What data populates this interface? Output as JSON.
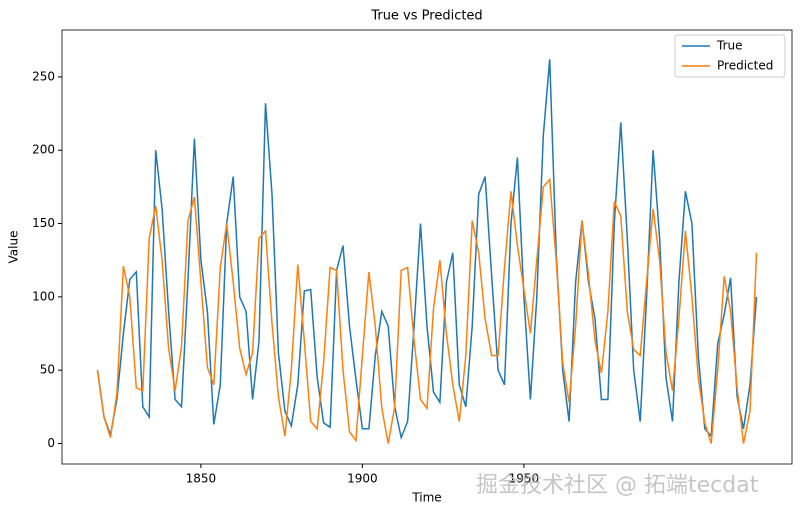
{
  "chart_data": {
    "type": "line",
    "title": "True vs Predicted",
    "xlabel": "Time",
    "ylabel": "Value",
    "x": [
      1818,
      1820,
      1822,
      1824,
      1826,
      1828,
      1830,
      1832,
      1834,
      1836,
      1838,
      1840,
      1842,
      1844,
      1846,
      1848,
      1850,
      1852,
      1854,
      1856,
      1858,
      1860,
      1862,
      1864,
      1866,
      1868,
      1870,
      1872,
      1874,
      1876,
      1878,
      1880,
      1882,
      1884,
      1886,
      1888,
      1890,
      1892,
      1894,
      1896,
      1898,
      1900,
      1902,
      1904,
      1906,
      1908,
      1910,
      1912,
      1914,
      1916,
      1918,
      1920,
      1922,
      1924,
      1926,
      1928,
      1930,
      1932,
      1934,
      1936,
      1938,
      1940,
      1942,
      1944,
      1946,
      1948,
      1950,
      1952,
      1954,
      1956,
      1958,
      1960,
      1962,
      1964,
      1966,
      1968,
      1970,
      1972,
      1974,
      1976,
      1978,
      1980,
      1982,
      1984,
      1986,
      1988,
      1990,
      1992,
      1994,
      1996,
      1998,
      2000,
      2002,
      2004,
      2006,
      2008,
      2010,
      2012,
      2014,
      2016,
      2018,
      2020,
      2022
    ],
    "series": [
      {
        "name": "True",
        "color": "#1f77b4",
        "values": [
          50,
          18,
          6,
          30,
          75,
          112,
          117,
          25,
          18,
          200,
          160,
          90,
          30,
          25,
          112,
          208,
          125,
          90,
          13,
          40,
          150,
          182,
          100,
          90,
          30,
          70,
          232,
          170,
          62,
          22,
          12,
          40,
          104,
          105,
          45,
          14,
          11,
          118,
          135,
          80,
          44,
          10,
          10,
          60,
          90,
          80,
          25,
          4,
          15,
          80,
          150,
          80,
          35,
          28,
          110,
          130,
          40,
          25,
          80,
          170,
          182,
          115,
          50,
          40,
          150,
          195,
          100,
          30,
          100,
          210,
          262,
          130,
          50,
          15,
          110,
          152,
          110,
          85,
          30,
          30,
          150,
          219,
          140,
          50,
          15,
          100,
          200,
          140,
          45,
          15,
          110,
          172,
          150,
          60,
          10,
          5,
          68,
          88,
          113,
          32,
          10,
          40,
          100
        ]
      },
      {
        "name": "Predicted",
        "color": "#ff7f0e",
        "values": [
          50,
          18,
          4,
          34,
          121,
          100,
          38,
          36,
          140,
          162,
          125,
          65,
          36,
          66,
          152,
          168,
          110,
          52,
          40,
          120,
          150,
          110,
          65,
          47,
          62,
          140,
          145,
          82,
          32,
          5,
          50,
          122,
          70,
          15,
          10,
          55,
          120,
          118,
          50,
          8,
          2,
          60,
          117,
          80,
          24,
          0,
          25,
          118,
          120,
          70,
          30,
          24,
          92,
          125,
          75,
          40,
          15,
          60,
          152,
          130,
          85,
          60,
          60,
          120,
          172,
          135,
          105,
          75,
          125,
          175,
          180,
          125,
          55,
          28,
          80,
          152,
          115,
          70,
          48,
          90,
          165,
          155,
          90,
          64,
          60,
          110,
          160,
          125,
          62,
          36,
          85,
          145,
          100,
          45,
          14,
          0,
          50,
          114,
          90,
          38,
          0,
          22,
          130
        ]
      }
    ],
    "xlim": [
      1807,
      2033
    ],
    "ylim": [
      -14,
      282
    ],
    "xticks": [
      1850,
      1900,
      1950
    ],
    "yticks": [
      0,
      50,
      100,
      150,
      200,
      250
    ],
    "legend": "upper right",
    "watermark": "掘金技术社区 @ 拓端tecdat"
  }
}
